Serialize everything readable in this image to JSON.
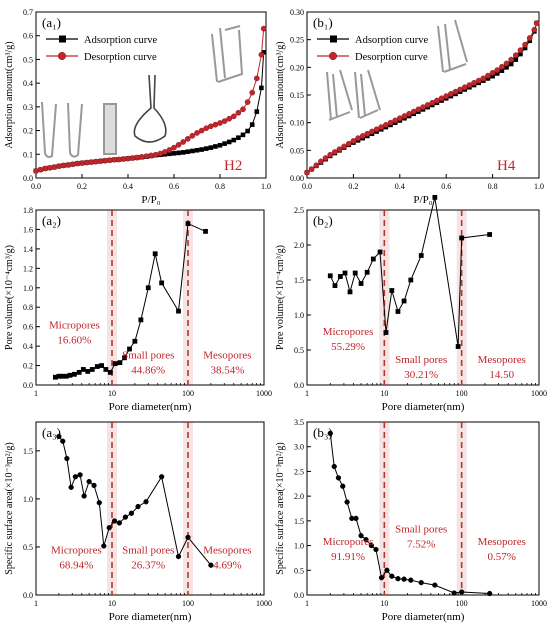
{
  "figure": {
    "colors": {
      "axis": "#000000",
      "adsorption": "#000000",
      "desorption": "#c0262b",
      "divider": "#b03a2e",
      "region_text": "#c0262b",
      "band": "#f6e3e3"
    }
  },
  "chart_data": [
    {
      "id": "a1",
      "type": "line",
      "panel_label": "(a₁)",
      "xlabel": "P/P₀",
      "ylabel": "Adsorption amount(cm³/g)",
      "xlim": [
        0,
        1.0
      ],
      "ylim": [
        0,
        0.7
      ],
      "xticks": [
        0.0,
        0.2,
        0.4,
        0.6,
        0.8,
        1.0
      ],
      "yticks": [
        0.0,
        0.1,
        0.2,
        0.3,
        0.4,
        0.5,
        0.6,
        0.7
      ],
      "tick_decimals": [
        1,
        1
      ],
      "legend": "top-left",
      "annotation": "H2",
      "series": [
        {
          "name": "Adsorption curve",
          "marker": "square",
          "x": [
            0.0,
            0.02,
            0.04,
            0.06,
            0.08,
            0.1,
            0.12,
            0.14,
            0.16,
            0.18,
            0.2,
            0.22,
            0.24,
            0.26,
            0.28,
            0.3,
            0.32,
            0.34,
            0.36,
            0.38,
            0.4,
            0.42,
            0.44,
            0.46,
            0.48,
            0.5,
            0.52,
            0.54,
            0.56,
            0.58,
            0.6,
            0.62,
            0.64,
            0.66,
            0.68,
            0.7,
            0.72,
            0.74,
            0.76,
            0.78,
            0.8,
            0.82,
            0.84,
            0.86,
            0.88,
            0.9,
            0.92,
            0.94,
            0.96,
            0.98,
            0.99
          ],
          "y": [
            0.03,
            0.035,
            0.04,
            0.043,
            0.046,
            0.05,
            0.053,
            0.055,
            0.058,
            0.061,
            0.063,
            0.065,
            0.067,
            0.069,
            0.071,
            0.073,
            0.075,
            0.077,
            0.078,
            0.08,
            0.082,
            0.084,
            0.086,
            0.088,
            0.09,
            0.093,
            0.096,
            0.098,
            0.1,
            0.102,
            0.104,
            0.106,
            0.108,
            0.111,
            0.114,
            0.117,
            0.12,
            0.124,
            0.128,
            0.133,
            0.138,
            0.145,
            0.152,
            0.16,
            0.17,
            0.182,
            0.198,
            0.225,
            0.28,
            0.38,
            0.53
          ]
        },
        {
          "name": "Desorption curve",
          "marker": "circle",
          "x": [
            0.99,
            0.98,
            0.96,
            0.94,
            0.92,
            0.9,
            0.88,
            0.86,
            0.84,
            0.82,
            0.8,
            0.78,
            0.76,
            0.74,
            0.72,
            0.7,
            0.68,
            0.66,
            0.64,
            0.62,
            0.6,
            0.58,
            0.56,
            0.54,
            0.52,
            0.5,
            0.48,
            0.46,
            0.44,
            0.42,
            0.4,
            0.38,
            0.36,
            0.34,
            0.32,
            0.3,
            0.28,
            0.26,
            0.24,
            0.22,
            0.2,
            0.18,
            0.16,
            0.14,
            0.12,
            0.1,
            0.08,
            0.06,
            0.04,
            0.02,
            0.0
          ],
          "y": [
            0.63,
            0.52,
            0.42,
            0.36,
            0.32,
            0.29,
            0.275,
            0.26,
            0.25,
            0.24,
            0.232,
            0.225,
            0.218,
            0.21,
            0.2,
            0.19,
            0.178,
            0.165,
            0.152,
            0.14,
            0.128,
            0.118,
            0.11,
            0.103,
            0.098,
            0.095,
            0.092,
            0.089,
            0.086,
            0.084,
            0.082,
            0.08,
            0.078,
            0.077,
            0.075,
            0.073,
            0.071,
            0.069,
            0.067,
            0.065,
            0.063,
            0.061,
            0.058,
            0.055,
            0.053,
            0.05,
            0.046,
            0.043,
            0.04,
            0.035,
            0.03
          ]
        }
      ]
    },
    {
      "id": "b1",
      "type": "line",
      "panel_label": "(b₁)",
      "xlabel": "P/P₀",
      "ylabel": "Adsorption amount(cm³/g)",
      "xlim": [
        0,
        1.0
      ],
      "ylim": [
        0,
        0.3
      ],
      "xticks": [
        0.0,
        0.2,
        0.4,
        0.6,
        0.8,
        1.0
      ],
      "yticks": [
        0.0,
        0.05,
        0.1,
        0.15,
        0.2,
        0.25,
        0.3
      ],
      "tick_decimals": [
        1,
        2
      ],
      "legend": "top-left",
      "annotation": "H4",
      "series": [
        {
          "name": "Adsorption curve",
          "marker": "square",
          "x": [
            0.0,
            0.02,
            0.04,
            0.06,
            0.08,
            0.1,
            0.12,
            0.14,
            0.16,
            0.18,
            0.2,
            0.22,
            0.24,
            0.26,
            0.28,
            0.3,
            0.32,
            0.34,
            0.36,
            0.38,
            0.4,
            0.42,
            0.44,
            0.46,
            0.48,
            0.5,
            0.52,
            0.54,
            0.56,
            0.58,
            0.6,
            0.62,
            0.64,
            0.66,
            0.68,
            0.7,
            0.72,
            0.74,
            0.76,
            0.78,
            0.8,
            0.82,
            0.84,
            0.86,
            0.88,
            0.9,
            0.92,
            0.94,
            0.96,
            0.98,
            0.99
          ],
          "y": [
            0.01,
            0.016,
            0.022,
            0.028,
            0.034,
            0.04,
            0.045,
            0.05,
            0.055,
            0.06,
            0.064,
            0.068,
            0.072,
            0.076,
            0.08,
            0.084,
            0.088,
            0.092,
            0.096,
            0.1,
            0.104,
            0.108,
            0.112,
            0.116,
            0.12,
            0.124,
            0.128,
            0.132,
            0.136,
            0.14,
            0.144,
            0.148,
            0.152,
            0.156,
            0.16,
            0.164,
            0.168,
            0.172,
            0.176,
            0.18,
            0.184,
            0.189,
            0.194,
            0.2,
            0.206,
            0.214,
            0.224,
            0.235,
            0.248,
            0.265,
            0.28
          ]
        },
        {
          "name": "Desorption curve",
          "marker": "circle",
          "x": [
            0.99,
            0.98,
            0.96,
            0.94,
            0.92,
            0.9,
            0.88,
            0.86,
            0.84,
            0.82,
            0.8,
            0.78,
            0.76,
            0.74,
            0.72,
            0.7,
            0.68,
            0.66,
            0.64,
            0.62,
            0.6,
            0.58,
            0.56,
            0.54,
            0.52,
            0.5,
            0.48,
            0.46,
            0.44,
            0.42,
            0.4,
            0.38,
            0.36,
            0.34,
            0.32,
            0.3,
            0.28,
            0.26,
            0.24,
            0.22,
            0.2,
            0.18,
            0.16,
            0.14,
            0.12,
            0.1,
            0.08,
            0.06,
            0.04,
            0.02,
            0.0
          ],
          "y": [
            0.28,
            0.268,
            0.253,
            0.241,
            0.231,
            0.222,
            0.214,
            0.207,
            0.201,
            0.195,
            0.19,
            0.185,
            0.18,
            0.176,
            0.172,
            0.168,
            0.164,
            0.16,
            0.156,
            0.152,
            0.148,
            0.144,
            0.14,
            0.136,
            0.132,
            0.128,
            0.124,
            0.12,
            0.116,
            0.112,
            0.108,
            0.104,
            0.1,
            0.096,
            0.092,
            0.088,
            0.084,
            0.08,
            0.076,
            0.072,
            0.067,
            0.062,
            0.057,
            0.052,
            0.047,
            0.042,
            0.036,
            0.03,
            0.023,
            0.016,
            0.01
          ]
        }
      ]
    },
    {
      "id": "a2",
      "type": "line",
      "panel_label": "(a₂)",
      "xlabel": "Pore diameter(nm)",
      "ylabel": "Pore volume(×10⁻⁴cm³/g)",
      "xscale": "log",
      "xlim": [
        1,
        1000
      ],
      "ylim": [
        0,
        1.8
      ],
      "xticks": [
        1,
        10,
        100,
        1000
      ],
      "yticks": [
        0.0,
        0.2,
        0.4,
        0.6,
        0.8,
        1.0,
        1.2,
        1.4,
        1.6,
        1.8
      ],
      "tick_decimals": [
        0,
        1
      ],
      "dividers": [
        10,
        100
      ],
      "regions": [
        {
          "label": "Micropores",
          "value": "16.60%",
          "x": 3.2,
          "y": 0.5
        },
        {
          "label": "Small pores",
          "value": "44.86%",
          "x": 30,
          "y": 0.19
        },
        {
          "label": "Mesopores",
          "value": "38.54%",
          "x": 330,
          "y": 0.19
        }
      ],
      "series": [
        {
          "name": "",
          "marker": "square",
          "x": [
            1.8,
            2.0,
            2.2,
            2.5,
            2.8,
            3.2,
            3.7,
            4.2,
            4.8,
            5.5,
            6.4,
            7.3,
            8.3,
            9.5,
            11,
            12.7,
            14.6,
            17,
            20,
            24,
            30,
            37,
            45,
            75,
            100,
            170
          ],
          "y": [
            0.08,
            0.09,
            0.09,
            0.09,
            0.1,
            0.11,
            0.13,
            0.16,
            0.14,
            0.16,
            0.19,
            0.2,
            0.16,
            0.13,
            0.22,
            0.23,
            0.28,
            0.37,
            0.45,
            0.67,
            1.0,
            1.35,
            1.05,
            0.76,
            1.66,
            1.58
          ]
        }
      ]
    },
    {
      "id": "b2",
      "type": "line",
      "panel_label": "(b₂)",
      "xlabel": "Pore diameter(nm)",
      "ylabel": "Pore volume(×10⁻⁴cm³/g)",
      "xscale": "log",
      "xlim": [
        1,
        1000
      ],
      "ylim": [
        0,
        2.5
      ],
      "xticks": [
        1,
        10,
        100,
        1000
      ],
      "yticks": [
        0.0,
        0.5,
        1.0,
        1.5,
        2.0,
        2.5
      ],
      "tick_decimals": [
        0,
        1
      ],
      "dividers": [
        10,
        100
      ],
      "regions": [
        {
          "label": "Micropores",
          "value": "55.29%",
          "x": 3.4,
          "y": 0.6
        },
        {
          "label": "Small pores",
          "value": "30.21%",
          "x": 30,
          "y": 0.2
        },
        {
          "label": "Mesopores",
          "value": "14.50",
          "x": 330,
          "y": 0.2
        }
      ],
      "series": [
        {
          "name": "",
          "marker": "square",
          "x": [
            2.0,
            2.3,
            2.7,
            3.1,
            3.6,
            4.2,
            5.0,
            6.0,
            7.2,
            8.8,
            10.5,
            12.5,
            15,
            18,
            22,
            30,
            45,
            90,
            100,
            230
          ],
          "y": [
            1.56,
            1.42,
            1.55,
            1.6,
            1.33,
            1.6,
            1.45,
            1.61,
            1.8,
            1.9,
            0.75,
            1.35,
            1.05,
            1.2,
            1.5,
            1.85,
            2.68,
            0.55,
            2.1,
            2.15
          ]
        }
      ]
    },
    {
      "id": "a3",
      "type": "line",
      "panel_label": "(a₃)",
      "xlabel": "Pore diameter(nm)",
      "ylabel": "Specific surface area(×10⁻³m²/g)",
      "xscale": "log",
      "xlim": [
        1,
        1000
      ],
      "ylim": [
        0,
        1.8
      ],
      "xticks": [
        1,
        10,
        100,
        1000
      ],
      "yticks": [
        0.0,
        0.5,
        1.0,
        1.5
      ],
      "tick_decimals": [
        0,
        1
      ],
      "dividers": [
        10,
        100
      ],
      "regions": [
        {
          "label": "Micropores",
          "value": "68.94%",
          "x": 3.4,
          "y": 0.35
        },
        {
          "label": "Small pores",
          "value": "26.37%",
          "x": 30,
          "y": 0.35
        },
        {
          "label": "Mesopores",
          "value": "4.69%",
          "x": 330,
          "y": 0.35
        }
      ],
      "series": [
        {
          "name": "",
          "marker": "circle",
          "x": [
            2.0,
            2.25,
            2.55,
            2.9,
            3.3,
            3.8,
            4.3,
            5.0,
            5.8,
            6.8,
            7.8,
            9.2,
            10.8,
            12.5,
            15,
            18,
            22,
            28,
            45,
            75,
            100,
            200
          ],
          "y": [
            1.65,
            1.6,
            1.42,
            1.12,
            1.23,
            1.25,
            1.03,
            1.18,
            1.14,
            0.96,
            0.51,
            0.7,
            0.77,
            0.75,
            0.81,
            0.85,
            0.92,
            0.97,
            1.23,
            0.4,
            0.6,
            0.31
          ]
        }
      ]
    },
    {
      "id": "b3",
      "type": "line",
      "panel_label": "(b₃)",
      "xlabel": "Pore diameter(nm)",
      "ylabel": "Specific surface area(×10⁻³m²/g)",
      "xscale": "log",
      "xlim": [
        1,
        1000
      ],
      "ylim": [
        0,
        3.5
      ],
      "xticks": [
        1,
        10,
        100,
        1000
      ],
      "yticks": [
        0.0,
        0.5,
        1.0,
        1.5,
        2.0,
        2.5,
        3.0,
        3.5
      ],
      "tick_decimals": [
        0,
        1
      ],
      "dividers": [
        10,
        100
      ],
      "regions": [
        {
          "label": "Micropores",
          "value": "91.91%",
          "x": 3.4,
          "y": 0.85
        },
        {
          "label": "Small pores",
          "value": "7.52%",
          "x": 30,
          "y": 1.1
        },
        {
          "label": "Mesopores",
          "value": "0.57%",
          "x": 330,
          "y": 0.85
        }
      ],
      "series": [
        {
          "name": "",
          "marker": "circle",
          "x": [
            2.0,
            2.25,
            2.55,
            2.9,
            3.3,
            3.8,
            4.3,
            5.0,
            5.8,
            6.8,
            7.8,
            9.2,
            10.8,
            12.5,
            15,
            18,
            22,
            30,
            45,
            80,
            100,
            230
          ],
          "y": [
            3.27,
            2.6,
            2.37,
            2.2,
            1.88,
            1.55,
            1.55,
            1.2,
            1.12,
            1.0,
            0.92,
            0.35,
            0.5,
            0.38,
            0.33,
            0.32,
            0.3,
            0.25,
            0.2,
            0.04,
            0.06,
            0.03
          ]
        }
      ]
    }
  ]
}
